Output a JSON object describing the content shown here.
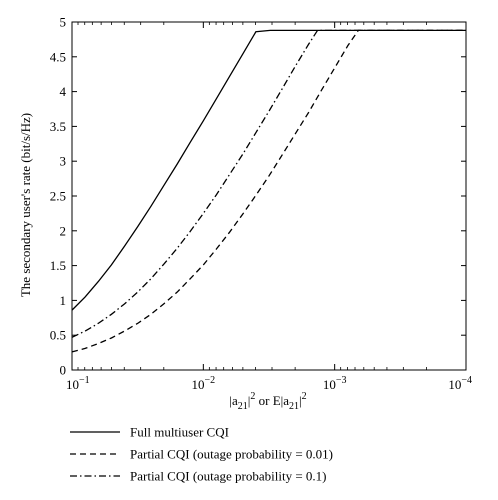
{
  "chart_data": {
    "type": "line",
    "xlabel_parts": {
      "a": "|a",
      "sub": "21",
      "b": "|",
      "sup": "2",
      "mid": " or E|a",
      "sub2": "21",
      "c": "|",
      "sup2": "2"
    },
    "ylabel": "The secondary user's rate (bit/s/Hz)",
    "x_scale": "log (reversed)",
    "xlim": [
      0.1,
      0.0001
    ],
    "ylim": [
      0,
      5
    ],
    "grid": false,
    "legend_position": "below",
    "x_ticks": [
      {
        "value": 0.1,
        "base": "10",
        "exp": "−1"
      },
      {
        "value": 0.01,
        "base": "10",
        "exp": "−2"
      },
      {
        "value": 0.001,
        "base": "10",
        "exp": "−3"
      },
      {
        "value": 0.0001,
        "base": "10",
        "exp": "−4"
      }
    ],
    "y_ticks": [
      {
        "value": 0,
        "label": "0"
      },
      {
        "value": 0.5,
        "label": "0.5"
      },
      {
        "value": 1,
        "label": "1"
      },
      {
        "value": 1.5,
        "label": "1.5"
      },
      {
        "value": 2,
        "label": "2"
      },
      {
        "value": 2.5,
        "label": "2.5"
      },
      {
        "value": 3,
        "label": "3"
      },
      {
        "value": 3.5,
        "label": "3.5"
      },
      {
        "value": 4,
        "label": "4"
      },
      {
        "value": 4.5,
        "label": "4.5"
      },
      {
        "value": 5,
        "label": "5"
      }
    ],
    "series": [
      {
        "name": "Full multiuser CQI",
        "dash": "",
        "points": [
          [
            0.1,
            0.86
          ],
          [
            0.0794,
            1.05
          ],
          [
            0.0631,
            1.27
          ],
          [
            0.0501,
            1.51
          ],
          [
            0.0398,
            1.78
          ],
          [
            0.0316,
            2.06
          ],
          [
            0.0251,
            2.35
          ],
          [
            0.02,
            2.65
          ],
          [
            0.0158,
            2.96
          ],
          [
            0.0126,
            3.27
          ],
          [
            0.01,
            3.58
          ],
          [
            0.00794,
            3.9
          ],
          [
            0.00631,
            4.22
          ],
          [
            0.00501,
            4.54
          ],
          [
            0.00398,
            4.86
          ],
          [
            0.0031,
            4.88
          ],
          [
            0.0001,
            4.88
          ]
        ]
      },
      {
        "name": "Partial CQI (outage probability = 0.01)",
        "dash": "6,4",
        "points": [
          [
            0.1,
            0.26
          ],
          [
            0.0794,
            0.31
          ],
          [
            0.0631,
            0.38
          ],
          [
            0.0501,
            0.46
          ],
          [
            0.0398,
            0.56
          ],
          [
            0.0316,
            0.67
          ],
          [
            0.0251,
            0.8
          ],
          [
            0.02,
            0.95
          ],
          [
            0.0158,
            1.12
          ],
          [
            0.0126,
            1.31
          ],
          [
            0.01,
            1.51
          ],
          [
            0.00794,
            1.74
          ],
          [
            0.00631,
            1.98
          ],
          [
            0.00501,
            2.24
          ],
          [
            0.00398,
            2.51
          ],
          [
            0.00316,
            2.79
          ],
          [
            0.00251,
            3.09
          ],
          [
            0.002,
            3.39
          ],
          [
            0.00158,
            3.7
          ],
          [
            0.00126,
            4.02
          ],
          [
            0.001,
            4.34
          ],
          [
            0.000794,
            4.66
          ],
          [
            0.00066,
            4.88
          ],
          [
            0.0001,
            4.88
          ]
        ]
      },
      {
        "name": "Partial CQI (outage probability = 0.1)",
        "dash": "7,3,1.5,3",
        "points": [
          [
            0.1,
            0.47
          ],
          [
            0.0794,
            0.56
          ],
          [
            0.0631,
            0.67
          ],
          [
            0.0501,
            0.8
          ],
          [
            0.0398,
            0.95
          ],
          [
            0.0316,
            1.12
          ],
          [
            0.0251,
            1.31
          ],
          [
            0.02,
            1.52
          ],
          [
            0.0158,
            1.75
          ],
          [
            0.0126,
            1.99
          ],
          [
            0.01,
            2.25
          ],
          [
            0.00794,
            2.52
          ],
          [
            0.00631,
            2.81
          ],
          [
            0.00501,
            3.1
          ],
          [
            0.00398,
            3.41
          ],
          [
            0.00316,
            3.72
          ],
          [
            0.00251,
            4.04
          ],
          [
            0.002,
            4.36
          ],
          [
            0.00158,
            4.68
          ],
          [
            0.00135,
            4.88
          ],
          [
            0.0001,
            4.88
          ]
        ]
      }
    ]
  }
}
